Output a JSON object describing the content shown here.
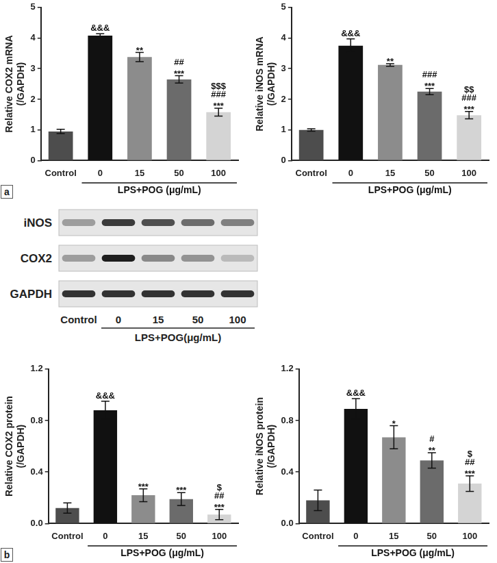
{
  "panel_labels": [
    "a",
    "b"
  ],
  "chart_data": [
    {
      "type": "bar",
      "y_label": [
        "Relative COX2 mRNA",
        "(/GAPDH)"
      ],
      "x_label": "LPS+POG (μg/mL)",
      "categories": [
        "Control",
        "0",
        "15",
        "50",
        "100"
      ],
      "values": [
        0.95,
        4.08,
        3.38,
        2.65,
        1.58
      ],
      "errors": [
        0.07,
        0.06,
        0.15,
        0.12,
        0.13
      ],
      "annotations": [
        [],
        [
          "&&&"
        ],
        [
          "**"
        ],
        [
          "##",
          "***"
        ],
        [
          "$$$",
          "###",
          "***"
        ]
      ],
      "colors": [
        "#4d4d4d",
        "#111111",
        "#8c8c8c",
        "#6b6b6b",
        "#d4d4d4"
      ],
      "ylim": [
        0,
        5
      ],
      "yticks": [
        0,
        1,
        2,
        3,
        4,
        5
      ],
      "grid": false
    },
    {
      "type": "bar",
      "y_label": [
        "Relative iNOS mRNA",
        "(/GAPDH)"
      ],
      "x_label": "LPS+POG (μg/mL)",
      "categories": [
        "Control",
        "0",
        "15",
        "50",
        "100"
      ],
      "values": [
        1.0,
        3.75,
        3.12,
        2.25,
        1.48
      ],
      "errors": [
        0.04,
        0.22,
        0.04,
        0.1,
        0.12
      ],
      "annotations": [
        [],
        [
          "&&&"
        ],
        [
          "**"
        ],
        [
          "###",
          "***"
        ],
        [
          "$$",
          "###",
          "***"
        ]
      ],
      "colors": [
        "#4d4d4d",
        "#111111",
        "#8c8c8c",
        "#6b6b6b",
        "#d4d4d4"
      ],
      "ylim": [
        0,
        5
      ],
      "yticks": [
        0,
        1,
        2,
        3,
        4,
        5
      ],
      "grid": false
    },
    {
      "type": "bar",
      "y_label": [
        "Relative COX2 protein",
        "(/GAPDH)"
      ],
      "x_label": "LPS+POG (μg/mL)",
      "categories": [
        "Control",
        "0",
        "15",
        "50",
        "100"
      ],
      "values": [
        0.12,
        0.88,
        0.22,
        0.19,
        0.07
      ],
      "errors": [
        0.04,
        0.07,
        0.05,
        0.05,
        0.04
      ],
      "annotations": [
        [],
        [
          "&&&"
        ],
        [
          "***"
        ],
        [
          "***"
        ],
        [
          "$",
          "##",
          "***"
        ]
      ],
      "colors": [
        "#4d4d4d",
        "#111111",
        "#8c8c8c",
        "#6b6b6b",
        "#d4d4d4"
      ],
      "ylim": [
        0,
        1.2
      ],
      "yticks": [
        {
          "value": 0,
          "label": "0.0"
        },
        0.4,
        0.8,
        1.2
      ],
      "grid": false
    },
    {
      "type": "bar",
      "y_label": [
        "Relative iNOS protein",
        "(/GAPDH)"
      ],
      "x_label": "LPS+POG (μg/mL)",
      "categories": [
        "Control",
        "0",
        "15",
        "50",
        "100"
      ],
      "values": [
        0.18,
        0.89,
        0.67,
        0.49,
        0.31
      ],
      "errors": [
        0.08,
        0.08,
        0.09,
        0.06,
        0.06
      ],
      "annotations": [
        [],
        [
          "&&&"
        ],
        [
          "*"
        ],
        [
          "#",
          "**"
        ],
        [
          "$",
          "##",
          "***"
        ]
      ],
      "colors": [
        "#4d4d4d",
        "#111111",
        "#8c8c8c",
        "#6b6b6b",
        "#d4d4d4"
      ],
      "ylim": [
        0,
        1.2
      ],
      "yticks": [
        {
          "value": 0,
          "label": "0.0"
        },
        0.4,
        0.8,
        1.2
      ],
      "grid": false
    }
  ],
  "blot": {
    "rows": [
      {
        "label": "iNOS",
        "band_intensity": [
          0.35,
          0.85,
          0.75,
          0.6,
          0.5
        ]
      },
      {
        "label": "COX2",
        "band_intensity": [
          0.35,
          1.0,
          0.45,
          0.4,
          0.2
        ]
      },
      {
        "label": "GAPDH",
        "band_intensity": [
          0.9,
          0.9,
          0.9,
          0.9,
          0.9
        ]
      }
    ],
    "categories": [
      "Control",
      "0",
      "15",
      "50",
      "100"
    ],
    "x_label": "LPS+POG(μg/mL)"
  }
}
